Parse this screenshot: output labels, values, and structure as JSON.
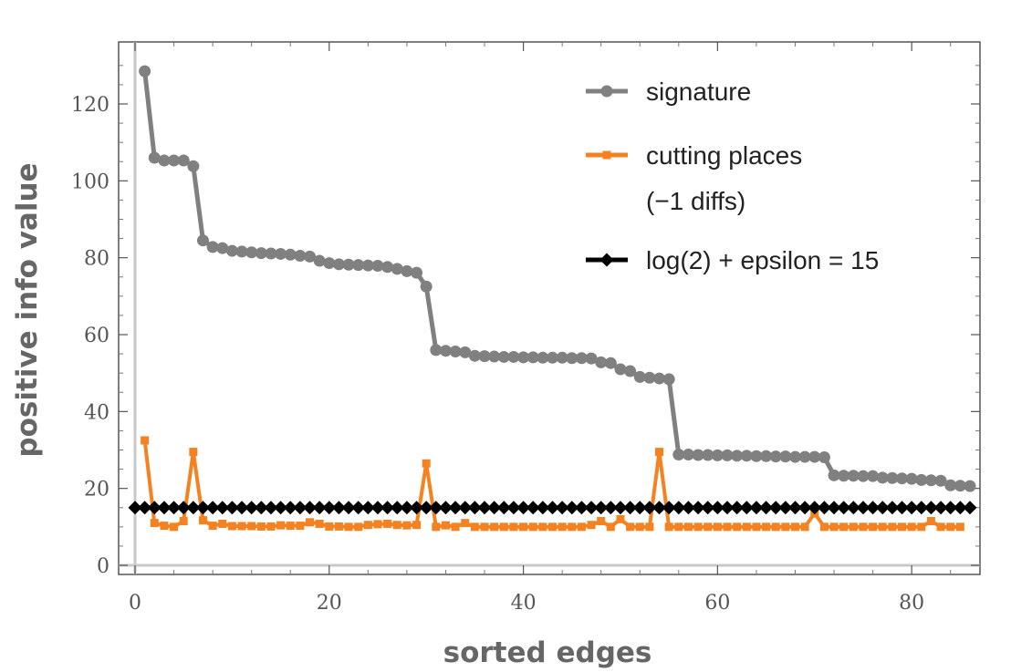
{
  "chart_data": {
    "type": "line",
    "title": "",
    "xlabel": "sorted edges",
    "ylabel": "positive info value",
    "xlim": [
      0,
      88
    ],
    "ylim": [
      -3,
      136
    ],
    "x_ticks": [
      0,
      20,
      40,
      60,
      80
    ],
    "x_tick_labels": [
      "0",
      "20",
      "40",
      "60",
      "80"
    ],
    "y_ticks": [
      0,
      20,
      40,
      60,
      80,
      100,
      120
    ],
    "y_tick_labels": [
      "0",
      "20",
      "40",
      "60",
      "80",
      "100",
      "120"
    ],
    "grid": false,
    "legend_position": "top-right",
    "series": [
      {
        "name": "signature",
        "color": "#808080",
        "marker": "circle",
        "values": [
          128.5,
          106.0,
          105.3,
          105.3,
          105.3,
          103.8,
          84.5,
          82.8,
          82.5,
          81.8,
          81.6,
          81.4,
          81.2,
          81.1,
          81.0,
          80.8,
          80.5,
          80.3,
          79.2,
          78.6,
          78.3,
          78.2,
          78.1,
          78.0,
          77.9,
          77.6,
          77.1,
          76.5,
          76.1,
          72.5,
          56.0,
          55.8,
          55.6,
          55.4,
          54.5,
          54.4,
          54.3,
          54.2,
          54.2,
          54.1,
          54.1,
          54.0,
          54.0,
          54.0,
          53.9,
          53.9,
          53.8,
          52.8,
          52.6,
          51.0,
          50.5,
          49.0,
          48.8,
          48.6,
          48.4,
          28.8,
          28.8,
          28.7,
          28.7,
          28.6,
          28.6,
          28.5,
          28.5,
          28.4,
          28.4,
          28.3,
          28.3,
          28.2,
          28.2,
          28.2,
          28.1,
          23.4,
          23.3,
          23.3,
          23.2,
          23.2,
          22.8,
          22.7,
          22.6,
          22.5,
          22.2,
          22.1,
          22.0,
          20.8,
          20.7,
          20.6
        ]
      },
      {
        "name": "cutting places\n(−1 diffs)",
        "legend_lines": [
          "cutting places",
          "(−1 diffs)"
        ],
        "color": "#f58220",
        "marker": "square",
        "values": [
          32.5,
          11.0,
          10.3,
          10.0,
          11.5,
          29.5,
          11.7,
          10.3,
          10.8,
          10.2,
          10.2,
          10.2,
          10.1,
          10.1,
          10.4,
          10.3,
          10.3,
          11.2,
          10.8,
          10.1,
          10.1,
          10.0,
          10.0,
          10.5,
          10.7,
          10.8,
          10.5,
          10.4,
          10.5,
          26.5,
          10.0,
          10.4,
          10.0,
          11.0,
          10.0,
          10.0,
          10.0,
          10.0,
          10.0,
          10.0,
          10.0,
          10.0,
          10.0,
          10.0,
          10.0,
          10.0,
          10.5,
          11.5,
          10.0,
          12.0,
          10.0,
          10.0,
          10.0,
          29.5,
          10.0,
          10.0,
          10.0,
          10.0,
          10.0,
          10.0,
          10.0,
          10.0,
          10.0,
          10.0,
          10.0,
          10.0,
          10.0,
          10.0,
          10.0,
          13.5,
          10.0,
          10.0,
          10.0,
          10.0,
          10.0,
          10.0,
          10.0,
          10.0,
          10.0,
          10.0,
          10.0,
          11.5,
          10.0,
          10.0,
          10.0
        ]
      },
      {
        "name": "log(2) + epsilon = 15",
        "color": "#000000",
        "marker": "diamond",
        "constant_value": 15,
        "count": 87
      }
    ]
  }
}
